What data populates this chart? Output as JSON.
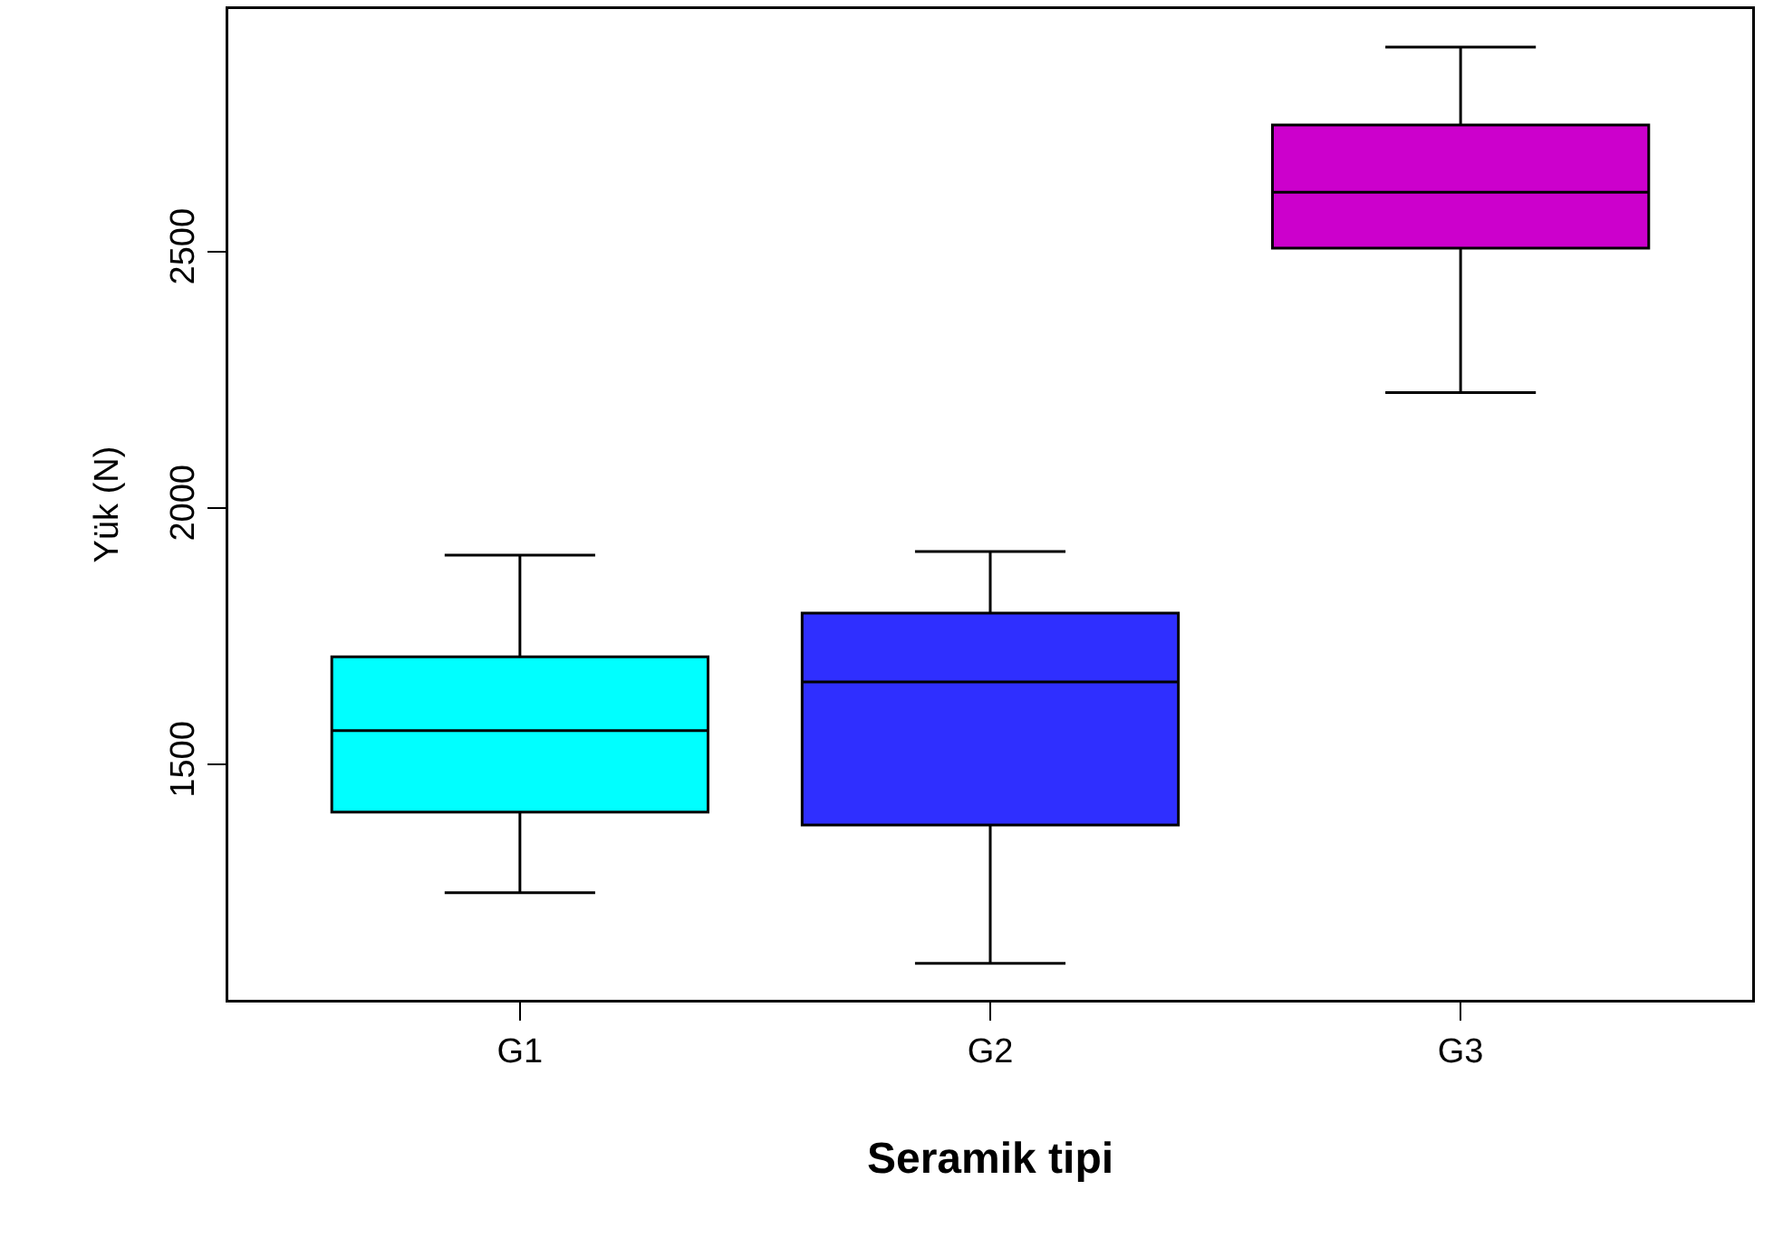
{
  "chart_data": {
    "type": "box",
    "xlabel": "Seramik tipi",
    "ylabel": "Yük (N)",
    "categories": [
      "G1",
      "G2",
      "G3"
    ],
    "colors": [
      "#00ffff",
      "#2f2fff",
      "#cc00cc"
    ],
    "boxes": [
      {
        "low": 1250,
        "q1": 1407,
        "median": 1566,
        "q3": 1710,
        "high": 1908
      },
      {
        "low": 1112,
        "q1": 1382,
        "median": 1661,
        "q3": 1795,
        "high": 1915
      },
      {
        "low": 2225,
        "q1": 2507,
        "median": 2616,
        "q3": 2747,
        "high": 2899
      }
    ],
    "ylim": [
      1041,
      2973
    ],
    "yticks": [
      1500,
      2000,
      2500
    ]
  }
}
